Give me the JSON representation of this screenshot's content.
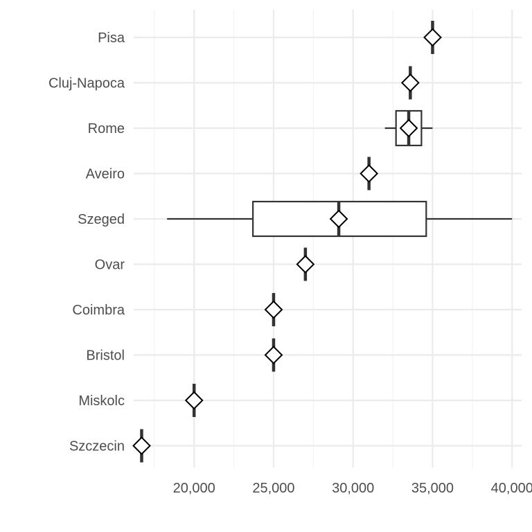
{
  "chart_data": {
    "type": "boxplot",
    "orientation": "horizontal",
    "title": "",
    "xlabel": "",
    "ylabel": "",
    "xlim": [
      16200,
      40600
    ],
    "x_ticks": [
      20000,
      25000,
      30000,
      35000,
      40000
    ],
    "x_tick_labels": [
      "20,000",
      "25,000",
      "30,000",
      "35,000",
      "40,000"
    ],
    "categories": [
      "Szczecin",
      "Miskolc",
      "Bristol",
      "Coimbra",
      "Ovar",
      "Szeged",
      "Aveiro",
      "Rome",
      "Cluj-Napoca",
      "Pisa"
    ],
    "series": [
      {
        "category": "Szczecin",
        "min": 16700,
        "q1": 16700,
        "median": 16700,
        "q3": 16700,
        "max": 16700,
        "mean": 16700
      },
      {
        "category": "Miskolc",
        "min": 20000,
        "q1": 20000,
        "median": 20000,
        "q3": 20000,
        "max": 20000,
        "mean": 20000
      },
      {
        "category": "Bristol",
        "min": 25000,
        "q1": 25000,
        "median": 25000,
        "q3": 25000,
        "max": 25000,
        "mean": 25000
      },
      {
        "category": "Coimbra",
        "min": 25000,
        "q1": 25000,
        "median": 25000,
        "q3": 25000,
        "max": 25000,
        "mean": 25000
      },
      {
        "category": "Ovar",
        "min": 27000,
        "q1": 27000,
        "median": 27000,
        "q3": 27000,
        "max": 27000,
        "mean": 27000
      },
      {
        "category": "Szeged",
        "min": 18300,
        "q1": 23700,
        "median": 29100,
        "q3": 34600,
        "max": 40000,
        "mean": 29100
      },
      {
        "category": "Aveiro",
        "min": 31000,
        "q1": 31000,
        "median": 31000,
        "q3": 31000,
        "max": 31000,
        "mean": 31000
      },
      {
        "category": "Rome",
        "min": 32000,
        "q1": 32700,
        "median": 33500,
        "q3": 34300,
        "max": 35000,
        "mean": 33500
      },
      {
        "category": "Cluj-Napoca",
        "min": 33600,
        "q1": 33600,
        "median": 33600,
        "q3": 33600,
        "max": 33600,
        "mean": 33600
      },
      {
        "category": "Pisa",
        "min": 35000,
        "q1": 35000,
        "median": 35000,
        "q3": 35000,
        "max": 35000,
        "mean": 35000
      }
    ],
    "mean_marker": "open-diamond",
    "grid": true,
    "legend": "none",
    "colors": {
      "box_fill": "#ffffff",
      "box_stroke": "#333333",
      "marker_stroke": "#000000",
      "grid": "#ebebeb",
      "text": "#4d4d4d"
    }
  }
}
